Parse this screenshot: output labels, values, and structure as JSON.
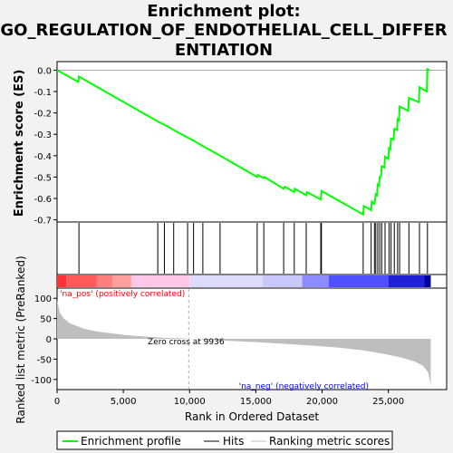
{
  "title_lines": [
    "Enrichment plot:",
    "GO_REGULATION_OF_ENDOTHELIAL_CELL_DIFFER",
    "ENTIATION"
  ],
  "colors": {
    "es_line": "#00ff00",
    "hits": "#000000",
    "metric_fill": "#bebebe",
    "pos_label": "#ff0000",
    "neg_label": "#0000ff",
    "zero_line": "#aaaaaa"
  },
  "legend": {
    "enrichment": "Enrichment profile",
    "hits": "Hits",
    "metric": "Ranking metric scores"
  },
  "annotations": {
    "pos": "'na_pos' (positively correlated)",
    "neg": "'na_neg' (negatively correlated)",
    "zero_cross": "Zero cross at 9936"
  },
  "chart_data": [
    {
      "type": "line",
      "name": "enrichment-profile",
      "ylabel": "Enrichment score (ES)",
      "ylim": [
        -0.71,
        0.04
      ],
      "xlim": [
        0,
        29400
      ],
      "yticks": [
        0.0,
        -0.1,
        -0.2,
        -0.3,
        -0.4,
        -0.5,
        -0.6,
        -0.7
      ],
      "ytick_labels": [
        "0.0",
        "-0.1",
        "-0.2",
        "-0.3",
        "-0.4",
        "-0.5",
        "-0.6",
        "-0.7"
      ],
      "grid": false,
      "points": [
        [
          0,
          0.0
        ],
        [
          1600,
          -0.055
        ],
        [
          1650,
          -0.03
        ],
        [
          7600,
          -0.24
        ],
        [
          8100,
          -0.255
        ],
        [
          8800,
          -0.28
        ],
        [
          9850,
          -0.315
        ],
        [
          10300,
          -0.33
        ],
        [
          11000,
          -0.355
        ],
        [
          12300,
          -0.4
        ],
        [
          15100,
          -0.5
        ],
        [
          15150,
          -0.49
        ],
        [
          15600,
          -0.505
        ],
        [
          15650,
          -0.5
        ],
        [
          17100,
          -0.555
        ],
        [
          17200,
          -0.545
        ],
        [
          17900,
          -0.57
        ],
        [
          17950,
          -0.555
        ],
        [
          18800,
          -0.585
        ],
        [
          18850,
          -0.57
        ],
        [
          19900,
          -0.605
        ],
        [
          19950,
          -0.565
        ],
        [
          23100,
          -0.675
        ],
        [
          23150,
          -0.635
        ],
        [
          23700,
          -0.655
        ],
        [
          23750,
          -0.615
        ],
        [
          23950,
          -0.625
        ],
        [
          24050,
          -0.58
        ],
        [
          24150,
          -0.585
        ],
        [
          24200,
          -0.535
        ],
        [
          24300,
          -0.54
        ],
        [
          24350,
          -0.5
        ],
        [
          24450,
          -0.495
        ],
        [
          24500,
          -0.45
        ],
        [
          24700,
          -0.455
        ],
        [
          24750,
          -0.405
        ],
        [
          25000,
          -0.415
        ],
        [
          25050,
          -0.365
        ],
        [
          25150,
          -0.37
        ],
        [
          25200,
          -0.32
        ],
        [
          25400,
          -0.325
        ],
        [
          25450,
          -0.275
        ],
        [
          25650,
          -0.28
        ],
        [
          25700,
          -0.23
        ],
        [
          25800,
          -0.235
        ],
        [
          25850,
          -0.17
        ],
        [
          26500,
          -0.19
        ],
        [
          26550,
          -0.13
        ],
        [
          27300,
          -0.15
        ],
        [
          27350,
          -0.08
        ],
        [
          27900,
          -0.1
        ],
        [
          27950,
          0.005
        ],
        [
          28100,
          0.0
        ]
      ]
    },
    {
      "type": "scatter",
      "name": "hits",
      "x": [
        1650,
        7600,
        8100,
        8800,
        9850,
        10300,
        11000,
        12300,
        15100,
        15600,
        17100,
        17900,
        18800,
        19900,
        19950,
        23100,
        23700,
        23950,
        24050,
        24200,
        24350,
        24500,
        24750,
        25050,
        25200,
        25450,
        25700,
        25850,
        26550,
        27350,
        27950
      ]
    },
    {
      "type": "area",
      "name": "ranking-metric",
      "xlabel": "Rank in Ordered Dataset",
      "ylabel": "Ranked list metric (PreRanked)",
      "ylim": [
        -125,
        125
      ],
      "xlim": [
        0,
        29400
      ],
      "yticks": [
        100,
        50,
        0,
        -50,
        -100
      ],
      "ytick_labels": [
        "100",
        "50",
        "0",
        "-50",
        "-100"
      ],
      "xticks": [
        0,
        5000,
        10000,
        15000,
        20000,
        25000
      ],
      "xtick_labels": [
        "0",
        "5,000",
        "10,000",
        "15,000",
        "20,000",
        "25,000"
      ],
      "zero_cross": 9936,
      "points": [
        [
          0,
          95
        ],
        [
          200,
          65
        ],
        [
          500,
          50
        ],
        [
          1000,
          38
        ],
        [
          2000,
          25
        ],
        [
          3000,
          18
        ],
        [
          4000,
          14
        ],
        [
          5000,
          10
        ],
        [
          6000,
          7
        ],
        [
          7000,
          5
        ],
        [
          8000,
          3
        ],
        [
          9000,
          1.5
        ],
        [
          9936,
          0
        ],
        [
          11000,
          -2
        ],
        [
          13000,
          -5
        ],
        [
          15000,
          -8
        ],
        [
          17000,
          -12
        ],
        [
          19000,
          -16
        ],
        [
          21000,
          -21
        ],
        [
          23000,
          -28
        ],
        [
          24500,
          -36
        ],
        [
          26000,
          -46
        ],
        [
          27000,
          -56
        ],
        [
          27600,
          -66
        ],
        [
          28000,
          -82
        ],
        [
          28150,
          -105
        ],
        [
          28200,
          -118
        ]
      ]
    }
  ],
  "color_bar": {
    "segments": [
      {
        "x0": 0,
        "x1": 700,
        "color": "#ff3333"
      },
      {
        "x0": 700,
        "x1": 3000,
        "color": "#ff5a5a"
      },
      {
        "x0": 3000,
        "x1": 4200,
        "color": "#ff7f7f"
      },
      {
        "x0": 4200,
        "x1": 5600,
        "color": "#ffa0a0"
      },
      {
        "x0": 5600,
        "x1": 10000,
        "color": "#ffc8e8"
      },
      {
        "x0": 10000,
        "x1": 15500,
        "color": "#dcdcfa"
      },
      {
        "x0": 15500,
        "x1": 18500,
        "color": "#c8c8fa"
      },
      {
        "x0": 18500,
        "x1": 20500,
        "color": "#8c8cff"
      },
      {
        "x0": 20500,
        "x1": 25000,
        "color": "#5050ff"
      },
      {
        "x0": 25000,
        "x1": 27700,
        "color": "#2020d8"
      },
      {
        "x0": 27700,
        "x1": 28200,
        "color": "#0000a0"
      }
    ]
  }
}
